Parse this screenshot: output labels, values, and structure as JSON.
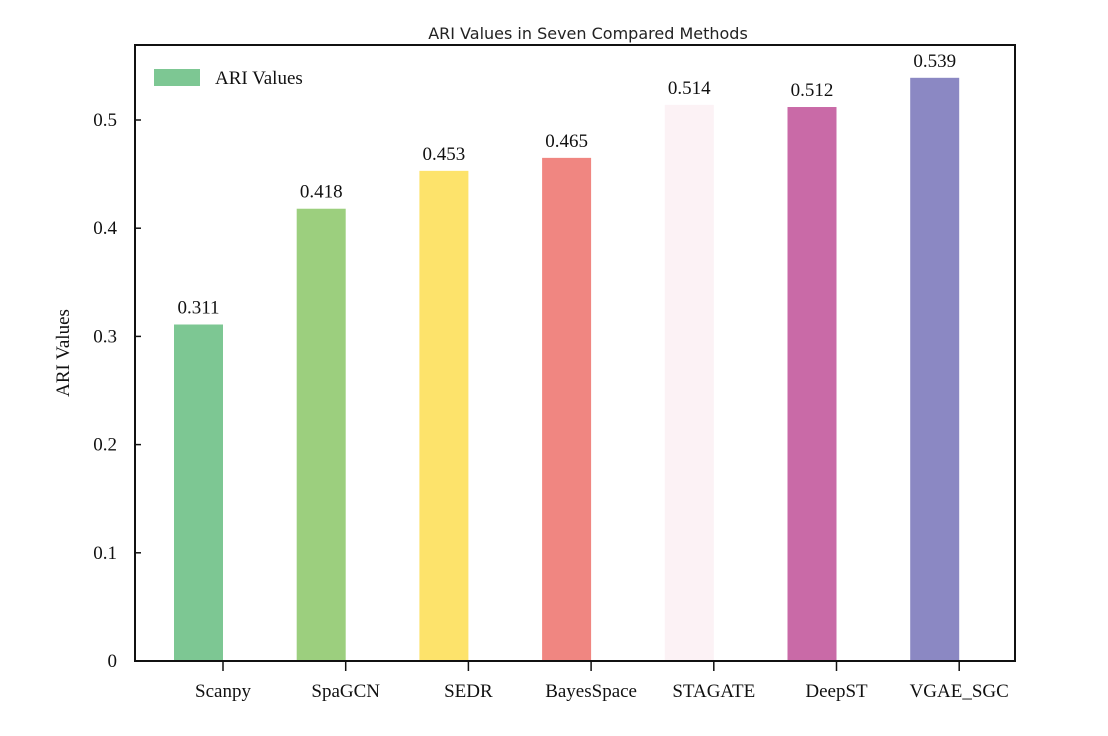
{
  "chart_data": {
    "type": "bar",
    "title": "ARI Values in Seven Compared Methods",
    "xlabel": "",
    "ylabel": "ARI Values",
    "ylim": [
      0,
      0.57
    ],
    "yticks": [
      "0",
      "0.1",
      "0.2",
      "0.3",
      "0.4",
      "0.5"
    ],
    "grid": false,
    "legend": {
      "placement": "top-left",
      "entries": [
        "ARI Values"
      ]
    },
    "categories": [
      "Scanpy",
      "SpaGCN",
      "SEDR",
      "BayesSpace",
      "STAGATE",
      "DeepST",
      "VGAE_SGC"
    ],
    "series": [
      {
        "name": "ARI Values",
        "values": [
          0.311,
          0.418,
          0.453,
          0.465,
          0.514,
          0.512,
          0.539
        ]
      }
    ],
    "data_labels": [
      "0.311",
      "0.418",
      "0.453",
      "0.465",
      "0.514",
      "0.512",
      "0.539"
    ],
    "colors": [
      "#7DC793",
      "#9CCF7E",
      "#FDE36B",
      "#F08681",
      "#FCF2F5",
      "#C96AA7",
      "#8B88C3"
    ]
  }
}
